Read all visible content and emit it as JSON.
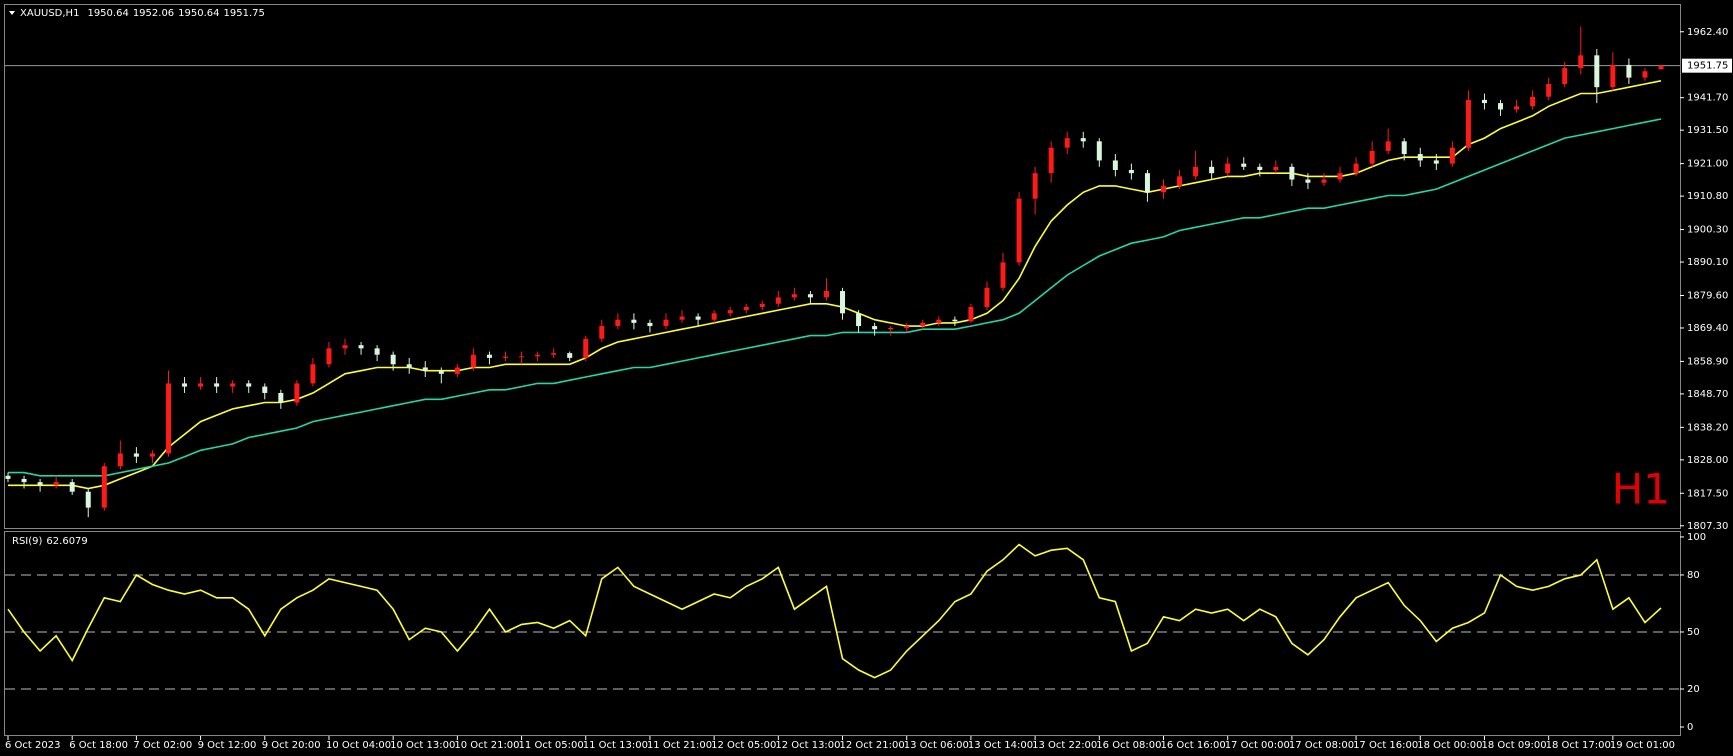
{
  "chart_data": [
    {
      "type": "candlestick",
      "title": "XAUUSD,H1",
      "ohlc": [
        1950.64,
        1952.06,
        1950.64,
        1951.75
      ],
      "watermark": "H1",
      "up_color": "#ff1a1a",
      "down_color": "#d9f7dc",
      "last_price": {
        "value": 1951.75,
        "label": "1951.75"
      },
      "ylim": [
        1806.6,
        1970.8
      ],
      "yticks": [
        {
          "value": 1807.3,
          "label": "1807.30"
        },
        {
          "value": 1817.5,
          "label": "1817.50"
        },
        {
          "value": 1828,
          "label": "1828.00"
        },
        {
          "value": 1838.2,
          "label": "1838.20"
        },
        {
          "value": 1848.7,
          "label": "1848.70"
        },
        {
          "value": 1858.9,
          "label": "1858.90"
        },
        {
          "value": 1869.4,
          "label": "1869.40"
        },
        {
          "value": 1879.6,
          "label": "1879.60"
        },
        {
          "value": 1890.1,
          "label": "1890.10"
        },
        {
          "value": 1900.3,
          "label": "1900.30"
        },
        {
          "value": 1910.8,
          "label": "1910.80"
        },
        {
          "value": 1921,
          "label": "1921.00"
        },
        {
          "value": 1931.5,
          "label": "1931.50"
        },
        {
          "value": 1941.7,
          "label": "1941.70"
        },
        {
          "value": 1962.4,
          "label": "1962.40"
        }
      ],
      "categories": [
        "6 Oct 2023",
        null,
        null,
        null,
        "6 Oct 18:00",
        null,
        null,
        null,
        "7 Oct 02:00",
        null,
        null,
        null,
        "9 Oct 12:00",
        null,
        null,
        null,
        "9 Oct 20:00",
        null,
        null,
        null,
        "10 Oct 04:00",
        null,
        null,
        null,
        "10 Oct 13:00",
        null,
        null,
        null,
        "10 Oct 21:00",
        null,
        null,
        null,
        "11 Oct 05:00",
        null,
        null,
        null,
        "11 Oct 13:00",
        null,
        null,
        null,
        "11 Oct 21:00",
        null,
        null,
        null,
        "12 Oct 05:00",
        null,
        null,
        null,
        "12 Oct 13:00",
        null,
        null,
        null,
        "12 Oct 21:00",
        null,
        null,
        null,
        "13 Oct 06:00",
        null,
        null,
        null,
        "13 Oct 14:00",
        null,
        null,
        null,
        "13 Oct 22:00",
        null,
        null,
        null,
        "16 Oct 08:00",
        null,
        null,
        null,
        "16 Oct 16:00",
        null,
        null,
        null,
        "17 Oct 00:00",
        null,
        null,
        null,
        "17 Oct 08:00",
        null,
        null,
        null,
        "17 Oct 16:00",
        null,
        null,
        null,
        "18 Oct 00:00",
        null,
        null,
        null,
        "18 Oct 09:00",
        null,
        null,
        null,
        "18 Oct 17:00",
        null,
        null,
        null,
        "19 Oct 01:00",
        null,
        null,
        null
      ],
      "candles": [
        [
          1823,
          1824,
          1821,
          1822
        ],
        [
          1822,
          1823,
          1819,
          1821
        ],
        [
          1821,
          1822,
          1818,
          1820
        ],
        [
          1820,
          1823,
          1819,
          1821
        ],
        [
          1821,
          1822,
          1817,
          1818
        ],
        [
          1818,
          1819,
          1810,
          1813
        ],
        [
          1813,
          1827,
          1812,
          1826
        ],
        [
          1826,
          1834,
          1825,
          1830
        ],
        [
          1830,
          1832,
          1827,
          1829
        ],
        [
          1829,
          1831,
          1827,
          1830
        ],
        [
          1830,
          1856,
          1829,
          1852
        ],
        [
          1852,
          1854,
          1849,
          1851
        ],
        [
          1851,
          1854,
          1850,
          1852
        ],
        [
          1852,
          1854,
          1849,
          1851
        ],
        [
          1851,
          1853,
          1849,
          1852
        ],
        [
          1852,
          1853,
          1849,
          1851
        ],
        [
          1851,
          1852,
          1847,
          1849
        ],
        [
          1849,
          1850,
          1844,
          1846
        ],
        [
          1846,
          1853,
          1845,
          1852
        ],
        [
          1852,
          1860,
          1851,
          1858
        ],
        [
          1858,
          1865,
          1857,
          1863
        ],
        [
          1863,
          1866,
          1861,
          1864
        ],
        [
          1864,
          1865,
          1861,
          1863
        ],
        [
          1863,
          1864,
          1859,
          1861
        ],
        [
          1861,
          1862,
          1856,
          1858
        ],
        [
          1858,
          1860,
          1855,
          1857
        ],
        [
          1857,
          1859,
          1854,
          1856
        ],
        [
          1856,
          1857,
          1852,
          1855
        ],
        [
          1855,
          1858,
          1854,
          1857
        ],
        [
          1857,
          1863,
          1856,
          1861
        ],
        [
          1861,
          1862,
          1858,
          1860
        ],
        [
          1860,
          1862,
          1859,
          1860.4
        ],
        [
          1860.4,
          1862,
          1858,
          1860.5
        ],
        [
          1860.5,
          1862,
          1859,
          1861
        ],
        [
          1861,
          1863,
          1860,
          1861.5
        ],
        [
          1861.5,
          1862,
          1859,
          1860
        ],
        [
          1860,
          1867,
          1859,
          1866
        ],
        [
          1866,
          1872,
          1865,
          1870
        ],
        [
          1870,
          1874,
          1869,
          1872
        ],
        [
          1872,
          1874,
          1869,
          1871
        ],
        [
          1871,
          1872,
          1868,
          1870
        ],
        [
          1870,
          1874,
          1869,
          1872
        ],
        [
          1872,
          1875,
          1871,
          1873
        ],
        [
          1873,
          1874,
          1870,
          1872
        ],
        [
          1872,
          1875,
          1871,
          1874
        ],
        [
          1874,
          1876,
          1873,
          1875
        ],
        [
          1875,
          1877,
          1874,
          1876
        ],
        [
          1876,
          1878,
          1875,
          1877
        ],
        [
          1877,
          1881,
          1876,
          1879
        ],
        [
          1879,
          1882,
          1878,
          1880
        ],
        [
          1880,
          1881,
          1877,
          1879
        ],
        [
          1879,
          1885,
          1878,
          1881
        ],
        [
          1881,
          1882,
          1872,
          1874
        ],
        [
          1874,
          1875,
          1868,
          1870
        ],
        [
          1870,
          1871,
          1867,
          1869
        ],
        [
          1869,
          1870,
          1867,
          1869.4
        ],
        [
          1869.4,
          1871,
          1868,
          1870
        ],
        [
          1870,
          1872,
          1869,
          1871
        ],
        [
          1871,
          1873,
          1870,
          1872
        ],
        [
          1872,
          1873,
          1870,
          1871.5
        ],
        [
          1871.5,
          1877,
          1871,
          1876
        ],
        [
          1876,
          1884,
          1875,
          1882
        ],
        [
          1882,
          1893,
          1881,
          1890
        ],
        [
          1890,
          1912,
          1889,
          1910
        ],
        [
          1910,
          1920,
          1905,
          1918
        ],
        [
          1918,
          1928,
          1915,
          1926
        ],
        [
          1926,
          1931,
          1924,
          1929
        ],
        [
          1929,
          1931,
          1926,
          1928
        ],
        [
          1928,
          1929,
          1920,
          1922
        ],
        [
          1922,
          1924,
          1917,
          1919
        ],
        [
          1919,
          1921,
          1916,
          1918
        ],
        [
          1918,
          1919,
          1909,
          1912
        ],
        [
          1912,
          1916,
          1910,
          1914
        ],
        [
          1914,
          1919,
          1913,
          1917
        ],
        [
          1917,
          1925,
          1916,
          1920
        ],
        [
          1920,
          1922,
          1916,
          1918
        ],
        [
          1918,
          1923,
          1917,
          1921
        ],
        [
          1921,
          1923,
          1919,
          1920
        ],
        [
          1920,
          1921,
          1917,
          1919
        ],
        [
          1919,
          1922,
          1918,
          1920
        ],
        [
          1920,
          1921,
          1914,
          1916
        ],
        [
          1916,
          1918,
          1913,
          1915
        ],
        [
          1915,
          1918,
          1914,
          1916
        ],
        [
          1916,
          1920,
          1915,
          1918
        ],
        [
          1918,
          1923,
          1917,
          1921
        ],
        [
          1921,
          1928,
          1920,
          1925
        ],
        [
          1925,
          1932,
          1924,
          1928
        ],
        [
          1928,
          1929,
          1922,
          1924
        ],
        [
          1924,
          1926,
          1920,
          1922
        ],
        [
          1922,
          1924,
          1919,
          1921
        ],
        [
          1921,
          1928,
          1920,
          1926
        ],
        [
          1926,
          1944,
          1925,
          1941
        ],
        [
          1941,
          1943,
          1938,
          1940
        ],
        [
          1940,
          1941,
          1936,
          1938
        ],
        [
          1938,
          1941,
          1937,
          1939
        ],
        [
          1939,
          1944,
          1938,
          1942
        ],
        [
          1942,
          1948,
          1941,
          1946
        ],
        [
          1946,
          1953,
          1945,
          1951
        ],
        [
          1951,
          1964,
          1949,
          1955
        ],
        [
          1955,
          1957,
          1940,
          1945
        ],
        [
          1945,
          1956,
          1944,
          1952
        ],
        [
          1952,
          1954,
          1946,
          1948
        ],
        [
          1948,
          1951,
          1947,
          1950
        ],
        [
          1950.64,
          1952.06,
          1950.64,
          1951.75
        ]
      ],
      "series": [
        {
          "color": "#ffff33",
          "values": [
            1820,
            1820,
            1820,
            1820,
            1820,
            1819,
            1820,
            1822,
            1824,
            1826,
            1832,
            1836,
            1840,
            1842,
            1844,
            1845,
            1846,
            1846,
            1847,
            1849,
            1852,
            1855,
            1856,
            1857,
            1857,
            1857,
            1856,
            1856,
            1856,
            1857,
            1857,
            1858,
            1858,
            1858,
            1858,
            1858,
            1860,
            1863,
            1865,
            1866,
            1867,
            1868,
            1869,
            1870,
            1871,
            1872,
            1873,
            1874,
            1875,
            1876,
            1877,
            1877,
            1876,
            1874,
            1872,
            1871,
            1870,
            1870,
            1871,
            1871,
            1872,
            1874,
            1878,
            1885,
            1895,
            1903,
            1908,
            1912,
            1914,
            1914,
            1913,
            1912,
            1913,
            1914,
            1915,
            1916,
            1917,
            1917,
            1918,
            1918,
            1918,
            1917,
            1917,
            1917,
            1918,
            1920,
            1922,
            1923,
            1923,
            1923,
            1923,
            1927,
            1929,
            1932,
            1934,
            1936,
            1939,
            1941,
            1943,
            1943,
            1944,
            1945,
            1946,
            1947
          ]
        },
        {
          "color": "#22d8a8",
          "values": [
            1824,
            1824,
            1823,
            1823,
            1823,
            1823,
            1823,
            1824,
            1825,
            1826,
            1827,
            1829,
            1831,
            1832,
            1833,
            1835,
            1836,
            1837,
            1838,
            1840,
            1841,
            1842,
            1843,
            1844,
            1845,
            1846,
            1847,
            1847,
            1848,
            1849,
            1850,
            1850,
            1851,
            1852,
            1852,
            1853,
            1854,
            1855,
            1856,
            1857,
            1857,
            1858,
            1859,
            1860,
            1861,
            1862,
            1863,
            1864,
            1865,
            1866,
            1867,
            1867,
            1868,
            1868,
            1868,
            1868,
            1868,
            1869,
            1869,
            1869,
            1870,
            1871,
            1872,
            1874,
            1878,
            1882,
            1886,
            1889,
            1892,
            1894,
            1896,
            1897,
            1898,
            1900,
            1901,
            1902,
            1903,
            1904,
            1904,
            1905,
            1906,
            1907,
            1907,
            1908,
            1909,
            1910,
            1911,
            1911,
            1912,
            1913,
            1915,
            1917,
            1919,
            1921,
            1923,
            1925,
            1927,
            1929,
            1930,
            1931,
            1932,
            1933,
            1934,
            1935
          ]
        }
      ]
    },
    {
      "type": "line",
      "title": "RSI(9)",
      "current_value": 62.6079,
      "color": "#ffff33",
      "ylim": [
        -4.2,
        102.6
      ],
      "yticks": [
        0,
        20,
        50,
        80,
        100
      ],
      "levels": [
        20,
        50,
        80
      ],
      "values": [
        62,
        50,
        40,
        48,
        35,
        52,
        68,
        66,
        80,
        75,
        72,
        70,
        72,
        68,
        68,
        62,
        48,
        62,
        68,
        72,
        78,
        76,
        74,
        72,
        62,
        46,
        52,
        50,
        40,
        50,
        62,
        50,
        54,
        55,
        52,
        56,
        48,
        78,
        84,
        74,
        70,
        66,
        62,
        66,
        70,
        68,
        74,
        78,
        84,
        62,
        68,
        74,
        36,
        30,
        26,
        30,
        40,
        48,
        56,
        66,
        70,
        82,
        88,
        96,
        90,
        93,
        94,
        88,
        68,
        66,
        40,
        44,
        58,
        56,
        62,
        60,
        62,
        56,
        62,
        58,
        44,
        38,
        46,
        58,
        68,
        72,
        76,
        64,
        56,
        45,
        52,
        55,
        60,
        80,
        74,
        72,
        74,
        78,
        80,
        88,
        62,
        68,
        55,
        62.6079
      ]
    }
  ]
}
